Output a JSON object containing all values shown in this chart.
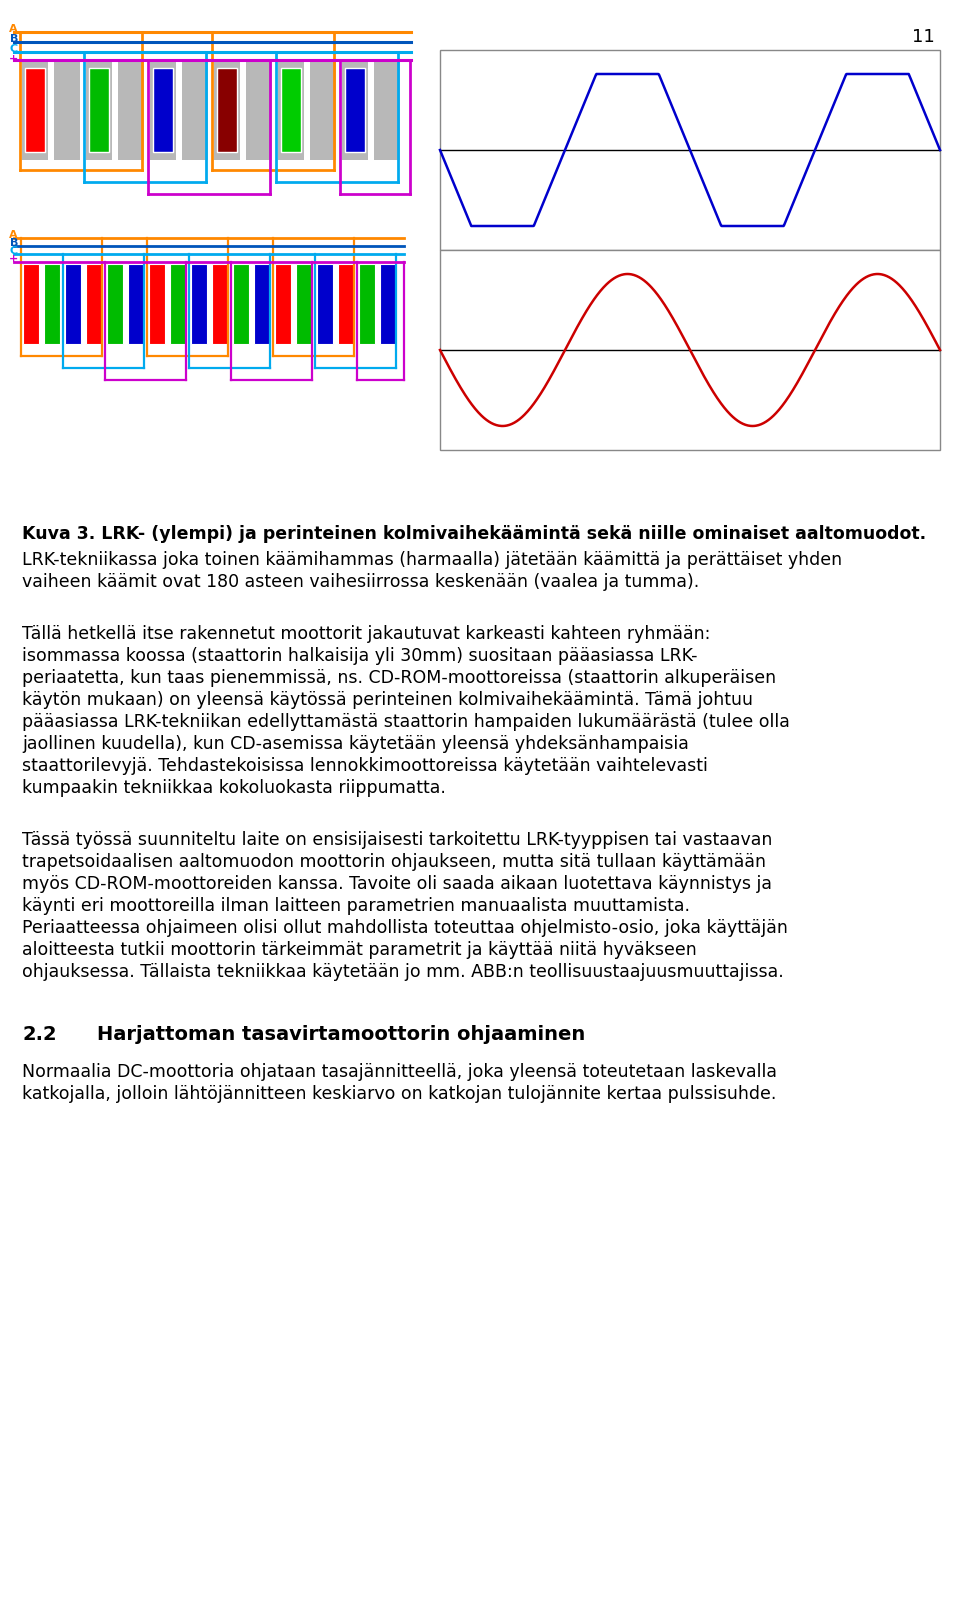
{
  "page_number": "11",
  "background_color": "#ffffff",
  "figure_caption_bold": "Kuva 3. LRK- (ylempi) ja perinteinen kolmivaihekäämintä sekä niille ominaiset aaltomuodot.",
  "caption2_line1": "LRK-tekniikassa joka toinen käämihammas (harmaalla) jätetään käämittä ja perättäiset yhden",
  "caption2_line2": "vaiheen käämit ovat 180 asteen vaihesiirrossa keskenään (vaalea ja tumma).",
  "p1_lines": [
    "Tällä hetkellä itse rakennetut moottorit jakautuvat karkeasti kahteen ryhmään:",
    "isommassa koossa (staattorin halkaisija yli 30mm) suositaan pääasiassa LRK-",
    "periaatetta, kun taas pienemmissä, ns. CD-ROM-moottoreissa (staattorin alkuperäisen",
    "käytön mukaan) on yleensä käytössä perinteinen kolmivaihekäämintä. Tämä johtuu",
    "pääasiassa LRK-tekniikan edellyttamästä staattorin hampaiden lukumäärästä (tulee olla",
    "jaollinen kuudella), kun CD-asemissa käytetään yleensä yhdeksänhampaisia",
    "staattorilevyjä. Tehdastekoisissa lennokkimoottoreissa käytetään vaihtelevasti",
    "kumpaakin tekniikkaa kokoluokasta riippumatta."
  ],
  "p2_lines": [
    "Tässä työssä suunniteltu laite on ensisijaisesti tarkoitettu LRK-tyyppisen tai vastaavan",
    "trapetsoidaalisen aaltomuodon moottorin ohjaukseen, mutta sitä tullaan käyttämään",
    "myös CD-ROM-moottoreiden kanssa. Tavoite oli saada aikaan luotettava käynnistys ja",
    "käynti eri moottoreilla ilman laitteen parametrien manuaalista muuttamista.",
    "Periaatteessa ohjaimeen olisi ollut mahdollista toteuttaa ohjelmisto-osio, joka käyttäjän",
    "aloitteesta tutkii moottorin tärkeimmät parametrit ja käyttää niitä hyväkseen",
    "ohjauksessa. Tällaista tekniikkaa käytetään jo mm. ABB:n teollisuustaajuusmuuttajissa."
  ],
  "section_num": "2.2",
  "section_title": "Harjattoman tasavirtamoottorin ohjaaminen",
  "p3_lines": [
    "Normaalia DC-moottoria ohjataan tasajännitteellä, joka yleensä toteutetaan laskevalla",
    "katkojalla, jolloin lähtöjännitteen keskiarvo on katkojan tulojännite kertaa pulssisuhde."
  ],
  "orange": "#ff8800",
  "dark_blue": "#0055bb",
  "sky_blue": "#00aaee",
  "magenta": "#cc00cc",
  "gray_slot": "#b8b8b8",
  "wave_blue": "#0000cc",
  "wave_red": "#cc0000"
}
